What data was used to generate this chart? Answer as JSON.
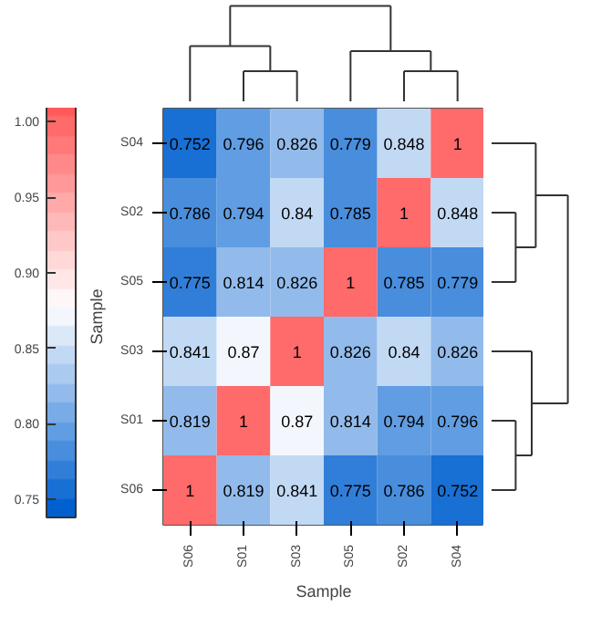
{
  "chart_data": {
    "type": "heatmap",
    "xlabel": "Sample",
    "ylabel": "Sample",
    "categories": [
      "S06",
      "S01",
      "S03",
      "S05",
      "S02",
      "S04"
    ],
    "y_categories": [
      "S04",
      "S02",
      "S05",
      "S03",
      "S01",
      "S06"
    ],
    "cells": [
      [
        0.752,
        0.796,
        0.826,
        0.779,
        0.848,
        1
      ],
      [
        0.786,
        0.794,
        0.84,
        0.785,
        1,
        0.848
      ],
      [
        0.775,
        0.814,
        0.826,
        1,
        0.785,
        0.779
      ],
      [
        0.841,
        0.87,
        1,
        0.826,
        0.84,
        0.826
      ],
      [
        0.819,
        1,
        0.87,
        0.814,
        0.794,
        0.796
      ],
      [
        1,
        0.819,
        0.841,
        0.775,
        0.786,
        0.752
      ]
    ],
    "data_labels": true,
    "clim": [
      0.738,
      1.016
    ],
    "cticks": [
      {
        "value": 0.75,
        "label": "0.75"
      },
      {
        "value": 0.8,
        "label": "0.80"
      },
      {
        "value": 0.85,
        "label": "0.85"
      },
      {
        "value": 0.9,
        "label": "0.90"
      },
      {
        "value": 0.95,
        "label": "0.95"
      },
      {
        "value": 1.0,
        "label": "1.00"
      }
    ]
  }
}
